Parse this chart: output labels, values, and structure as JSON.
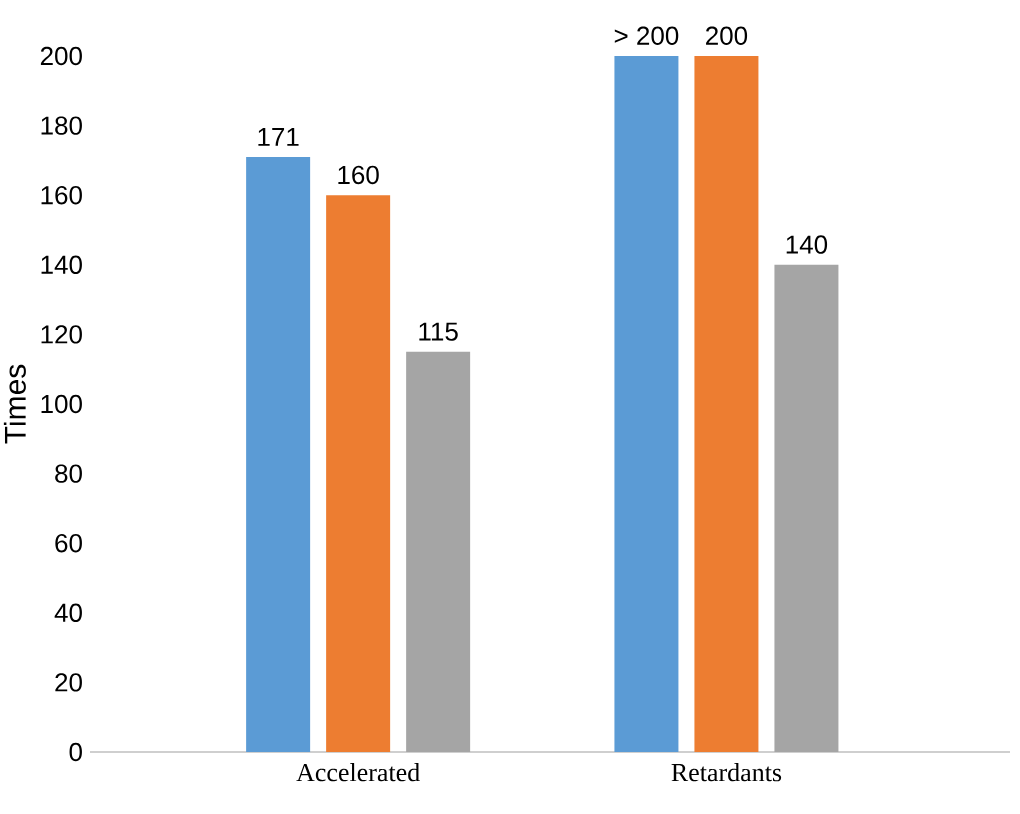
{
  "chart_data": {
    "type": "bar",
    "ylabel": "Times",
    "categories": [
      "Accelerated",
      "Retardants"
    ],
    "series": [
      {
        "color": "#5b9bd5",
        "values": [
          171,
          200
        ],
        "value_labels": [
          "171",
          "> 200"
        ]
      },
      {
        "color": "#ed7d31",
        "values": [
          160,
          200
        ],
        "value_labels": [
          "160",
          "200"
        ]
      },
      {
        "color": "#a5a5a5",
        "values": [
          115,
          140
        ],
        "value_labels": [
          "115",
          "140"
        ]
      }
    ],
    "ylim": [
      0,
      200
    ],
    "yticks": [
      0,
      20,
      40,
      60,
      80,
      100,
      120,
      140,
      160,
      180,
      200
    ]
  }
}
